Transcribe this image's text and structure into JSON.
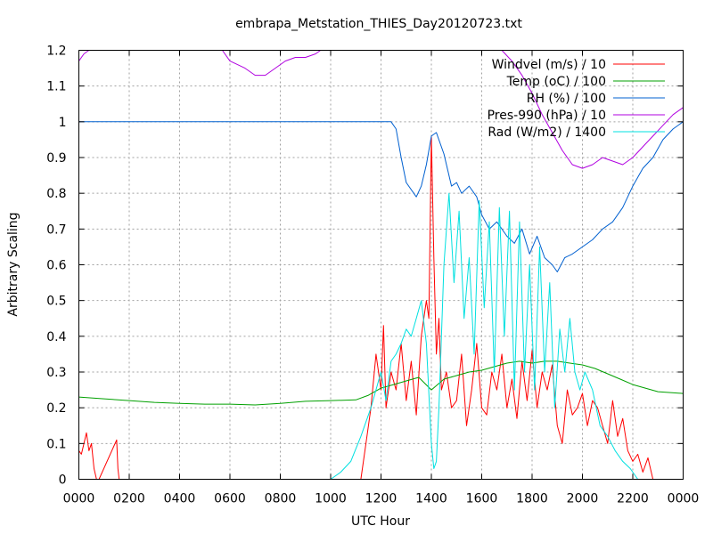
{
  "chart_data": {
    "type": "line",
    "title": "embrapa_Metstation_THIES_Day20120723.txt",
    "xlabel": "UTC Hour",
    "ylabel": "Arbitrary Scaling",
    "xlim": [
      0,
      24
    ],
    "ylim": [
      0,
      1.2
    ],
    "grid": true,
    "legend_position": "top-right",
    "x_tick_labels": [
      "0000",
      "0200",
      "0400",
      "0600",
      "0800",
      "1000",
      "1200",
      "1400",
      "1600",
      "1800",
      "2000",
      "2200",
      "0000"
    ],
    "y_tick_labels": [
      "0",
      "0.1",
      "0.2",
      "0.3",
      "0.4",
      "0.5",
      "0.6",
      "0.7",
      "0.8",
      "0.9",
      "1",
      "1.1",
      "1.2"
    ],
    "series": [
      {
        "name": "Windvel (m/s) / 10",
        "color": "#ff0000",
        "x": [
          0,
          0.1,
          0.2,
          0.3,
          0.4,
          0.5,
          0.6,
          0.7,
          0.8,
          1.5,
          1.55,
          1.6,
          11.2,
          11.4,
          11.6,
          11.8,
          12.0,
          12.1,
          12.2,
          12.4,
          12.6,
          12.8,
          13.0,
          13.2,
          13.4,
          13.6,
          13.8,
          13.9,
          14.0,
          14.1,
          14.2,
          14.3,
          14.4,
          14.6,
          14.8,
          15.0,
          15.2,
          15.4,
          15.6,
          15.8,
          16.0,
          16.2,
          16.4,
          16.6,
          16.8,
          17.0,
          17.2,
          17.4,
          17.6,
          17.8,
          18.0,
          18.2,
          18.4,
          18.6,
          18.8,
          19.0,
          19.2,
          19.4,
          19.6,
          19.8,
          20.0,
          20.2,
          20.4,
          20.6,
          20.8,
          21.0,
          21.2,
          21.4,
          21.6,
          21.8,
          22.0,
          22.2,
          22.4,
          22.6,
          22.8
        ],
        "y": [
          0.08,
          0.07,
          0.1,
          0.13,
          0.08,
          0.1,
          0.03,
          0.0,
          0.0,
          0.11,
          0.03,
          0.0,
          0.0,
          0.1,
          0.2,
          0.35,
          0.25,
          0.43,
          0.2,
          0.3,
          0.25,
          0.38,
          0.22,
          0.33,
          0.18,
          0.4,
          0.5,
          0.45,
          0.96,
          0.62,
          0.35,
          0.45,
          0.25,
          0.3,
          0.2,
          0.22,
          0.35,
          0.15,
          0.25,
          0.38,
          0.2,
          0.18,
          0.3,
          0.25,
          0.35,
          0.2,
          0.28,
          0.17,
          0.33,
          0.22,
          0.36,
          0.2,
          0.3,
          0.25,
          0.32,
          0.15,
          0.1,
          0.25,
          0.18,
          0.2,
          0.24,
          0.15,
          0.22,
          0.2,
          0.15,
          0.1,
          0.22,
          0.12,
          0.17,
          0.08,
          0.05,
          0.07,
          0.02,
          0.06,
          0.0
        ]
      },
      {
        "name": "Temp (oC) / 100",
        "color": "#00a000",
        "x": [
          0,
          1,
          2,
          3,
          4,
          5,
          6,
          7,
          8,
          9,
          10,
          11,
          11.5,
          12,
          12.5,
          13,
          13.5,
          14,
          14.5,
          15,
          15.5,
          16,
          16.5,
          17,
          17.5,
          18,
          18.5,
          19,
          19.5,
          20,
          20.5,
          21,
          21.5,
          22,
          22.5,
          23,
          24
        ],
        "y": [
          0.23,
          0.225,
          0.22,
          0.215,
          0.212,
          0.21,
          0.21,
          0.208,
          0.212,
          0.218,
          0.22,
          0.222,
          0.235,
          0.255,
          0.265,
          0.275,
          0.285,
          0.25,
          0.28,
          0.29,
          0.3,
          0.305,
          0.315,
          0.325,
          0.33,
          0.325,
          0.33,
          0.33,
          0.325,
          0.32,
          0.31,
          0.295,
          0.28,
          0.265,
          0.255,
          0.245,
          0.24
        ]
      },
      {
        "name": "RH (%) / 100",
        "color": "#0060d0",
        "x": [
          0,
          12.0,
          12.4,
          12.6,
          12.8,
          13.0,
          13.4,
          13.6,
          13.8,
          14.0,
          14.2,
          14.5,
          14.8,
          15.0,
          15.2,
          15.5,
          15.8,
          16.0,
          16.3,
          16.6,
          17.0,
          17.3,
          17.6,
          17.9,
          18.2,
          18.5,
          18.8,
          19.0,
          19.3,
          19.6,
          20.0,
          20.4,
          20.8,
          21.2,
          21.6,
          22.0,
          22.4,
          22.8,
          23.2,
          23.6,
          24.0
        ],
        "y": [
          1.0,
          1.0,
          1.0,
          0.98,
          0.9,
          0.83,
          0.79,
          0.82,
          0.88,
          0.96,
          0.97,
          0.91,
          0.82,
          0.83,
          0.8,
          0.82,
          0.79,
          0.74,
          0.7,
          0.72,
          0.68,
          0.66,
          0.7,
          0.63,
          0.68,
          0.62,
          0.6,
          0.58,
          0.62,
          0.63,
          0.65,
          0.67,
          0.7,
          0.72,
          0.76,
          0.82,
          0.87,
          0.9,
          0.95,
          0.98,
          1.0
        ]
      },
      {
        "name": "Pres-990 (hPa) / 10",
        "color": "#b000e0",
        "x": [
          0.0,
          0.2,
          0.4,
          5.7,
          6.0,
          6.3,
          6.6,
          7.0,
          7.4,
          7.8,
          8.2,
          8.6,
          9.0,
          9.4,
          9.6,
          16.8,
          17.2,
          17.6,
          18.0,
          18.4,
          18.8,
          19.2,
          19.6,
          20.0,
          20.4,
          20.8,
          21.2,
          21.6,
          22.0,
          22.4,
          22.8,
          23.2,
          23.6,
          24.0
        ],
        "y": [
          1.17,
          1.19,
          1.2,
          1.2,
          1.17,
          1.16,
          1.15,
          1.13,
          1.13,
          1.15,
          1.17,
          1.18,
          1.18,
          1.19,
          1.2,
          1.2,
          1.17,
          1.13,
          1.08,
          1.02,
          0.97,
          0.92,
          0.88,
          0.87,
          0.88,
          0.9,
          0.89,
          0.88,
          0.9,
          0.93,
          0.96,
          0.99,
          1.02,
          1.04
        ]
      },
      {
        "name": "Rad (W/m2) / 1400",
        "color": "#00e0e0",
        "x": [
          10.0,
          10.4,
          10.8,
          11.2,
          11.6,
          12.0,
          12.2,
          12.4,
          12.6,
          12.8,
          13.0,
          13.2,
          13.4,
          13.6,
          13.8,
          14.0,
          14.1,
          14.2,
          14.3,
          14.5,
          14.7,
          14.9,
          15.1,
          15.3,
          15.5,
          15.7,
          15.9,
          16.1,
          16.3,
          16.5,
          16.7,
          16.9,
          17.1,
          17.3,
          17.5,
          17.7,
          17.9,
          18.1,
          18.3,
          18.5,
          18.7,
          18.9,
          19.1,
          19.3,
          19.5,
          19.7,
          19.9,
          20.1,
          20.4,
          20.7,
          21.0,
          21.3,
          21.6,
          21.9,
          22.2
        ],
        "y": [
          0.0,
          0.02,
          0.05,
          0.12,
          0.2,
          0.3,
          0.22,
          0.33,
          0.35,
          0.38,
          0.42,
          0.4,
          0.45,
          0.5,
          0.38,
          0.1,
          0.03,
          0.05,
          0.2,
          0.6,
          0.8,
          0.55,
          0.75,
          0.45,
          0.62,
          0.35,
          0.78,
          0.48,
          0.72,
          0.3,
          0.76,
          0.4,
          0.75,
          0.25,
          0.72,
          0.3,
          0.6,
          0.25,
          0.65,
          0.3,
          0.55,
          0.2,
          0.42,
          0.3,
          0.45,
          0.3,
          0.25,
          0.3,
          0.25,
          0.15,
          0.12,
          0.08,
          0.05,
          0.03,
          0.0
        ]
      }
    ]
  }
}
